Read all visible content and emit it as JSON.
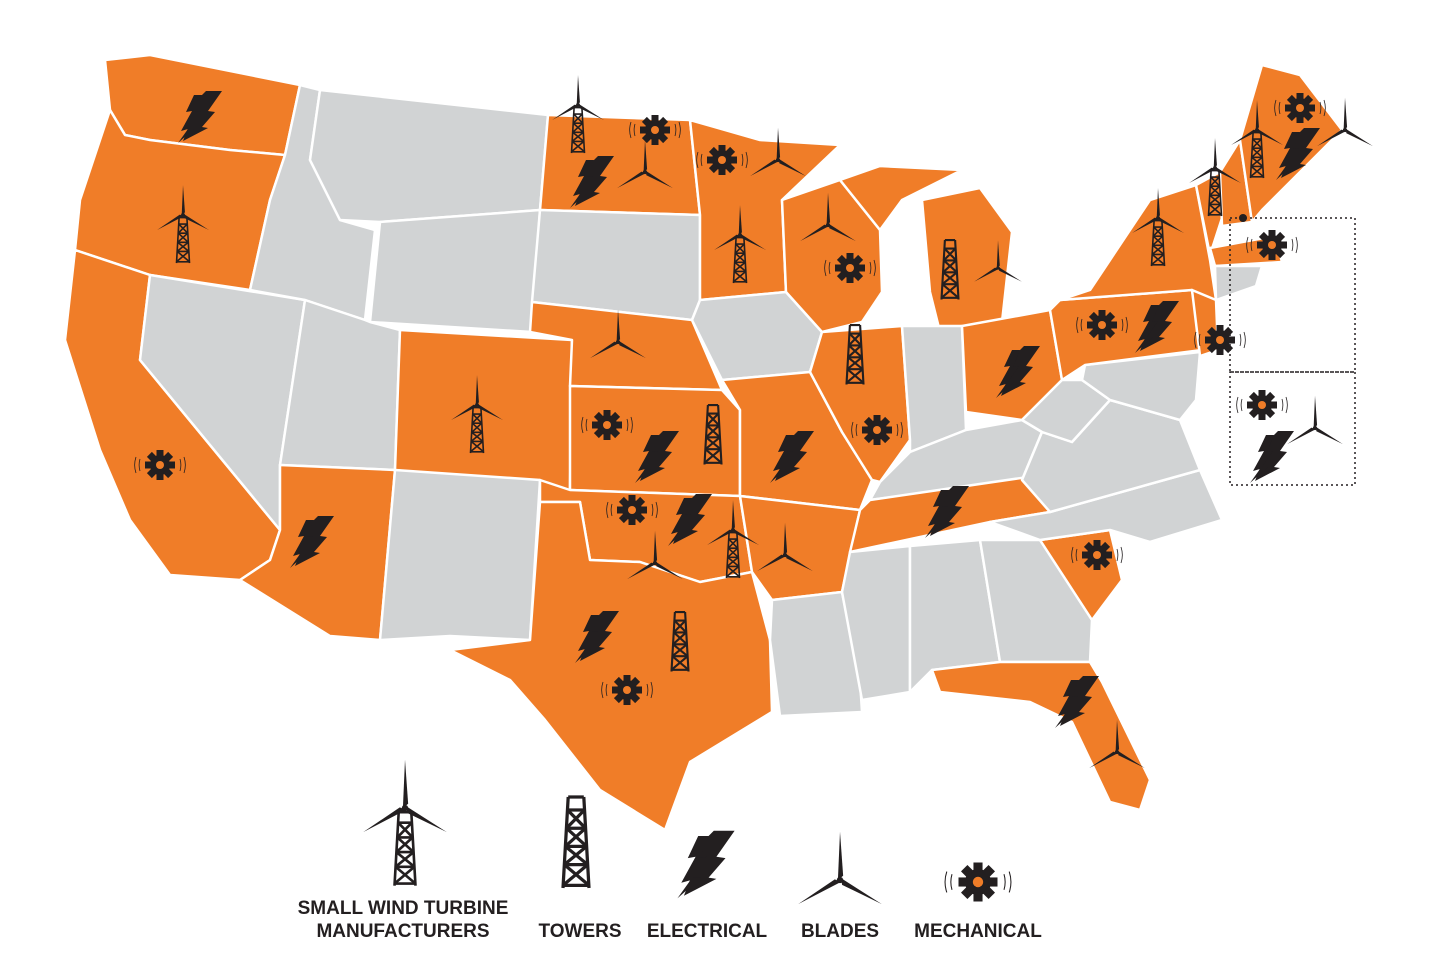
{
  "colors": {
    "highlighted_state": "#f07d28",
    "other_state": "#d1d3d4",
    "icon": "#231f20"
  },
  "legend": {
    "manufacturers": "SMALL WIND TURBINE MANUFACTURERS",
    "manufacturers_line1": "SMALL WIND TURBINE",
    "manufacturers_line2": "MANUFACTURERS",
    "towers": "TOWERS",
    "electrical": "ELECTRICAL",
    "blades": "BLADES",
    "mechanical": "MECHANICAL"
  },
  "states": [
    {
      "state": "WA",
      "icons": [
        "electrical"
      ]
    },
    {
      "state": "OR",
      "icons": [
        "manufacturer"
      ]
    },
    {
      "state": "CA",
      "icons": [
        "mechanical"
      ]
    },
    {
      "state": "AZ",
      "icons": [
        "electrical"
      ]
    },
    {
      "state": "CO",
      "icons": [
        "manufacturer"
      ]
    },
    {
      "state": "ND",
      "icons": [
        "manufacturer",
        "electrical",
        "blades",
        "mechanical"
      ]
    },
    {
      "state": "MN",
      "icons": [
        "mechanical",
        "blades",
        "manufacturer"
      ]
    },
    {
      "state": "WI",
      "icons": [
        "blades",
        "mechanical"
      ]
    },
    {
      "state": "MI",
      "icons": [
        "towers",
        "blades"
      ]
    },
    {
      "state": "NE",
      "icons": [
        "blades"
      ]
    },
    {
      "state": "KS",
      "icons": [
        "mechanical",
        "electrical",
        "towers"
      ]
    },
    {
      "state": "OK",
      "icons": [
        "mechanical",
        "electrical",
        "blades",
        "manufacturer"
      ]
    },
    {
      "state": "TX",
      "icons": [
        "electrical",
        "towers",
        "mechanical"
      ]
    },
    {
      "state": "MO",
      "icons": [
        "electrical"
      ]
    },
    {
      "state": "AR",
      "icons": [
        "blades"
      ]
    },
    {
      "state": "IL",
      "icons": [
        "towers",
        "mechanical"
      ]
    },
    {
      "state": "TN",
      "icons": [
        "electrical"
      ]
    },
    {
      "state": "OH",
      "icons": [
        "electrical"
      ]
    },
    {
      "state": "PA",
      "icons": [
        "mechanical",
        "electrical"
      ]
    },
    {
      "state": "NJ",
      "icons": [
        "mechanical"
      ]
    },
    {
      "state": "NY",
      "icons": [
        "manufacturer"
      ]
    },
    {
      "state": "VT",
      "icons": [
        "manufacturer"
      ]
    },
    {
      "state": "NH",
      "icons": [
        "manufacturer"
      ]
    },
    {
      "state": "ME",
      "icons": [
        "mechanical",
        "electrical",
        "blades"
      ]
    },
    {
      "state": "MA",
      "icons": [
        "mechanical"
      ]
    },
    {
      "state": "SC",
      "icons": [
        "mechanical"
      ]
    },
    {
      "state": "FL",
      "icons": [
        "electrical",
        "blades"
      ]
    },
    {
      "state": "inset",
      "icons": [
        "mechanical",
        "electrical",
        "blades"
      ]
    }
  ]
}
